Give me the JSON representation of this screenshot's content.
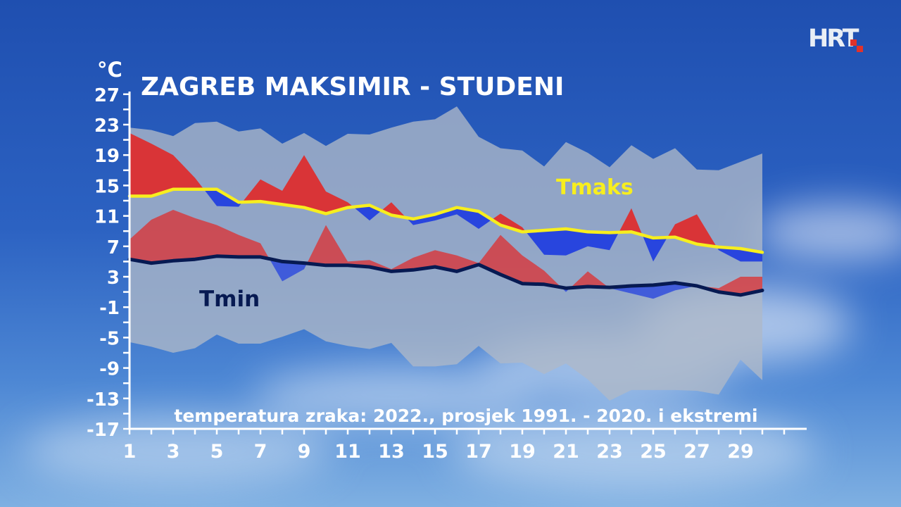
{
  "brand": {
    "logo_text": "HRT"
  },
  "colors": {
    "warm_anomaly": "#e02a2a",
    "cold_anomaly": "#1f3de0",
    "tmax_line": "#f7ee1e",
    "tmin_line": "#071a52",
    "extremes_band": "#aeb8c8",
    "text": "#ffffff"
  },
  "chart_data": {
    "type": "area",
    "title": "ZAGREB MAKSIMIR - STUDENI",
    "subtitle": "temperatura zraka: 2022., prosjek 1991. - 2020. i ekstremi",
    "ylabel": "°C",
    "xlabel": "",
    "ylim": [
      -17,
      28
    ],
    "xlim": [
      1,
      30.5
    ],
    "y_ticks": [
      27,
      23,
      19,
      15,
      11,
      7,
      3,
      -1,
      -5,
      -9,
      -13,
      -17
    ],
    "x_ticks": [
      1,
      3,
      5,
      7,
      9,
      11,
      13,
      15,
      17,
      19,
      21,
      23,
      25,
      27,
      29
    ],
    "x": [
      1,
      2,
      3,
      4,
      5,
      6,
      7,
      8,
      9,
      10,
      11,
      12,
      13,
      14,
      15,
      16,
      17,
      18,
      19,
      20,
      21,
      22,
      23,
      24,
      25,
      26,
      27,
      28,
      29,
      30
    ],
    "series": [
      {
        "name": "Tmaks",
        "values": [
          13.6,
          13.6,
          14.5,
          14.5,
          14.5,
          12.8,
          12.9,
          12.5,
          12.1,
          11.3,
          12.1,
          12.4,
          11.1,
          10.6,
          11.2,
          12.1,
          11.6,
          9.8,
          8.9,
          9.1,
          9.3,
          8.9,
          8.8,
          8.9,
          8.1,
          8.2,
          7.3,
          6.9,
          6.7,
          6.2
        ]
      },
      {
        "name": "Tmin",
        "values": [
          5.3,
          4.8,
          5.1,
          5.3,
          5.7,
          5.6,
          5.6,
          5.0,
          4.8,
          4.5,
          4.5,
          4.3,
          3.7,
          3.9,
          4.3,
          3.7,
          4.6,
          3.3,
          2.1,
          2.0,
          1.5,
          1.7,
          1.6,
          1.8,
          1.9,
          2.2,
          1.8,
          1.0,
          0.6,
          1.2
        ]
      }
    ],
    "tmax_2022": [
      21.9,
      20.5,
      19.0,
      16.0,
      12.3,
      12.2,
      15.8,
      14.3,
      19.0,
      14.2,
      12.8,
      10.4,
      12.8,
      9.8,
      10.4,
      11.2,
      9.3,
      11.3,
      9.5,
      5.9,
      5.8,
      7.0,
      6.5,
      12.0,
      5.0,
      9.9,
      11.2,
      6.5,
      5.0,
      5.0
    ],
    "tmin_2022": [
      7.9,
      10.5,
      11.8,
      10.7,
      9.8,
      8.5,
      7.4,
      2.4,
      4.0,
      9.8,
      5.0,
      5.2,
      4.0,
      5.5,
      6.5,
      5.8,
      4.8,
      8.5,
      5.8,
      3.8,
      1.0,
      3.7,
      1.5,
      0.8,
      0.1,
      1.2,
      1.8,
      1.5,
      3.0,
      3.0
    ],
    "abs_max": [
      22.6,
      22.3,
      21.5,
      23.2,
      23.4,
      22.1,
      22.5,
      20.5,
      21.9,
      20.2,
      21.8,
      21.7,
      22.6,
      23.4,
      23.7,
      25.4,
      21.4,
      19.9,
      19.6,
      17.5,
      20.7,
      19.3,
      17.4,
      20.3,
      18.5,
      19.9,
      17.1,
      17.0,
      18.1,
      19.2
    ],
    "abs_min": [
      -5.6,
      -6.2,
      -7.0,
      -6.4,
      -4.6,
      -5.8,
      -5.8,
      -4.9,
      -3.9,
      -5.5,
      -6.1,
      -6.5,
      -5.7,
      -8.8,
      -8.8,
      -8.5,
      -6.1,
      -8.4,
      -8.3,
      -9.8,
      -8.4,
      -10.5,
      -13.3,
      -11.9,
      -11.9,
      -11.9,
      -12.0,
      -12.5,
      -7.9,
      -10.6
    ]
  }
}
